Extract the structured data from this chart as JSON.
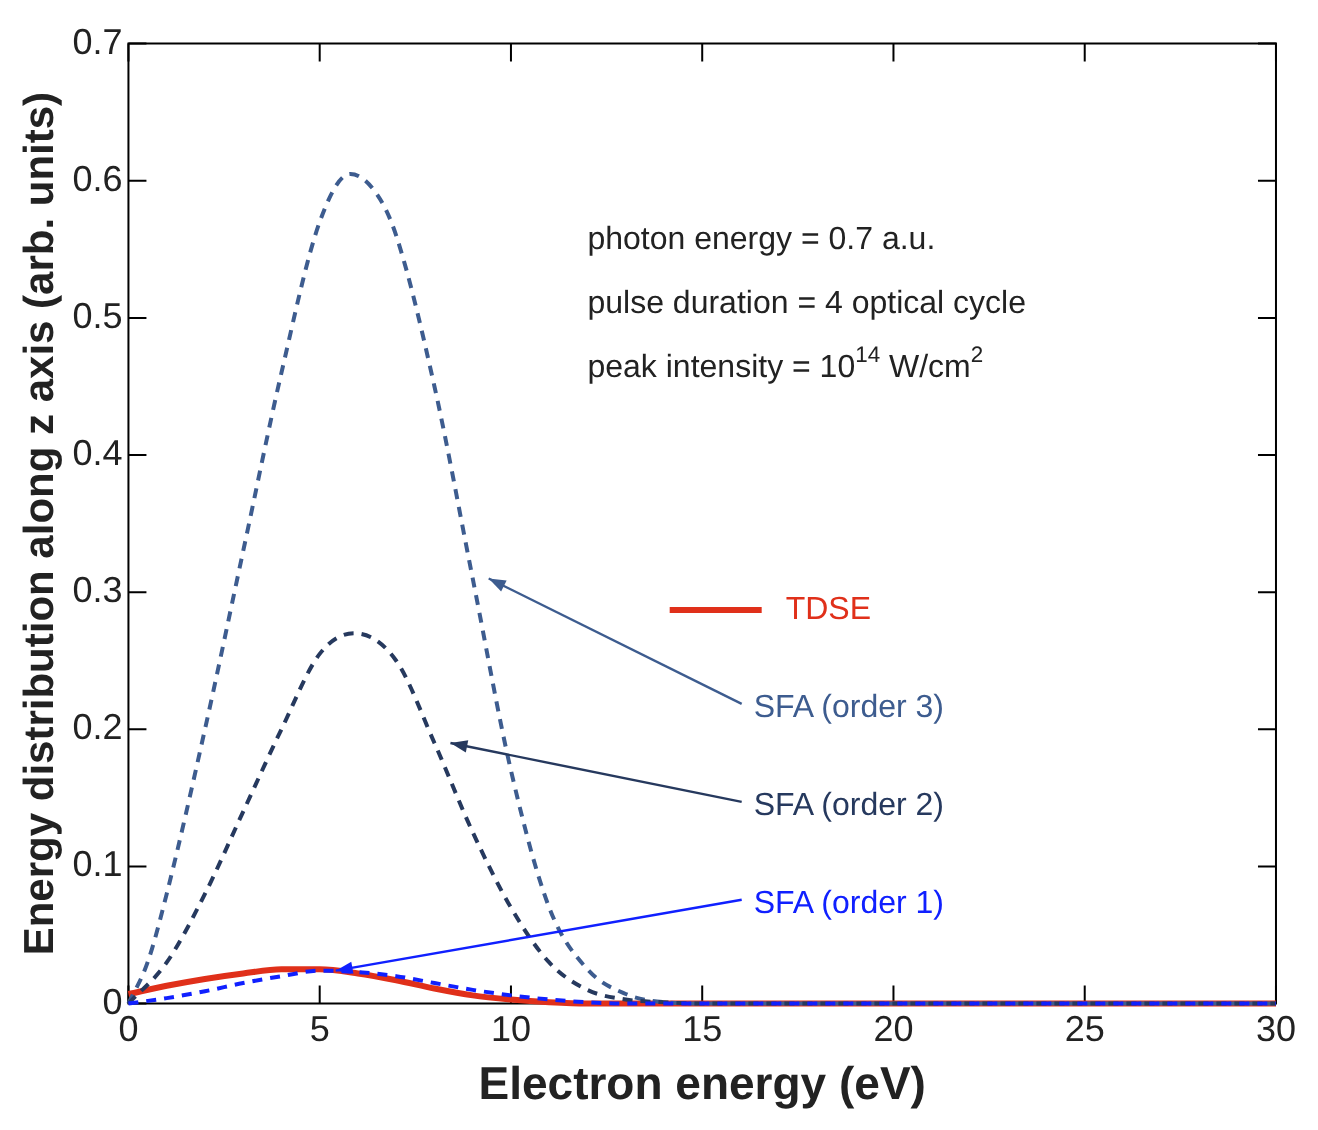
{
  "chart_data": {
    "type": "line",
    "xlabel": "Electron energy (eV)",
    "ylabel": "Energy distribution along z axis (arb. units)",
    "xlim": [
      0,
      30
    ],
    "xticks": [
      0,
      5,
      10,
      15,
      20,
      25,
      30
    ],
    "ylim": [
      0,
      0.7
    ],
    "yticks": [
      0,
      0.1,
      0.2,
      0.3,
      0.4,
      0.5,
      0.6,
      0.7
    ],
    "grid": false,
    "legend": "right",
    "marker": "none",
    "annotations": [
      "photon energy = 0.7 a.u.",
      "pulse duration = 4 optical cycle",
      "peak intensity = 10$^{14}$ W/cm$^{2}$"
    ],
    "series": [
      {
        "name": "TDSE",
        "color": "#e0301a",
        "line_style": "solid",
        "x": [
          0,
          1,
          2,
          3,
          4,
          5,
          6,
          7,
          8,
          9,
          10,
          11,
          12,
          13,
          30
        ],
        "values": [
          0.007,
          0.013,
          0.018,
          0.022,
          0.025,
          0.025,
          0.022,
          0.017,
          0.011,
          0.006,
          0.003,
          0.001,
          0,
          0,
          0
        ]
      },
      {
        "name": "SFA (order 3)",
        "color": "#3d5c8f",
        "line_style": "dashed",
        "x": [
          0,
          0.5,
          1,
          2,
          3,
          4,
          5,
          5.8,
          6.5,
          7,
          8,
          9,
          10,
          11,
          12,
          13,
          14,
          15,
          30
        ],
        "values": [
          0,
          0.03,
          0.08,
          0.2,
          0.33,
          0.46,
          0.57,
          0.605,
          0.59,
          0.56,
          0.45,
          0.31,
          0.17,
          0.07,
          0.025,
          0.007,
          0.001,
          0,
          0
        ]
      },
      {
        "name": "SFA (order 2)",
        "color": "#26395e",
        "line_style": "dashed",
        "x": [
          0,
          1,
          2,
          3,
          4,
          5,
          5.9,
          7,
          8,
          9,
          10,
          11,
          12,
          13,
          14,
          15,
          30
        ],
        "values": [
          0,
          0.03,
          0.08,
          0.14,
          0.2,
          0.255,
          0.27,
          0.25,
          0.19,
          0.125,
          0.07,
          0.03,
          0.01,
          0.003,
          0.001,
          0,
          0
        ]
      },
      {
        "name": "SFA (order 1)",
        "color": "#1020ff",
        "line_style": "dashed",
        "x": [
          0,
          1,
          2,
          3,
          4,
          5,
          6,
          7,
          8,
          9,
          10,
          11,
          12,
          13,
          14,
          30
        ],
        "values": [
          0,
          0.004,
          0.009,
          0.015,
          0.02,
          0.024,
          0.023,
          0.02,
          0.015,
          0.01,
          0.006,
          0.003,
          0.001,
          0,
          0,
          0
        ]
      }
    ]
  }
}
